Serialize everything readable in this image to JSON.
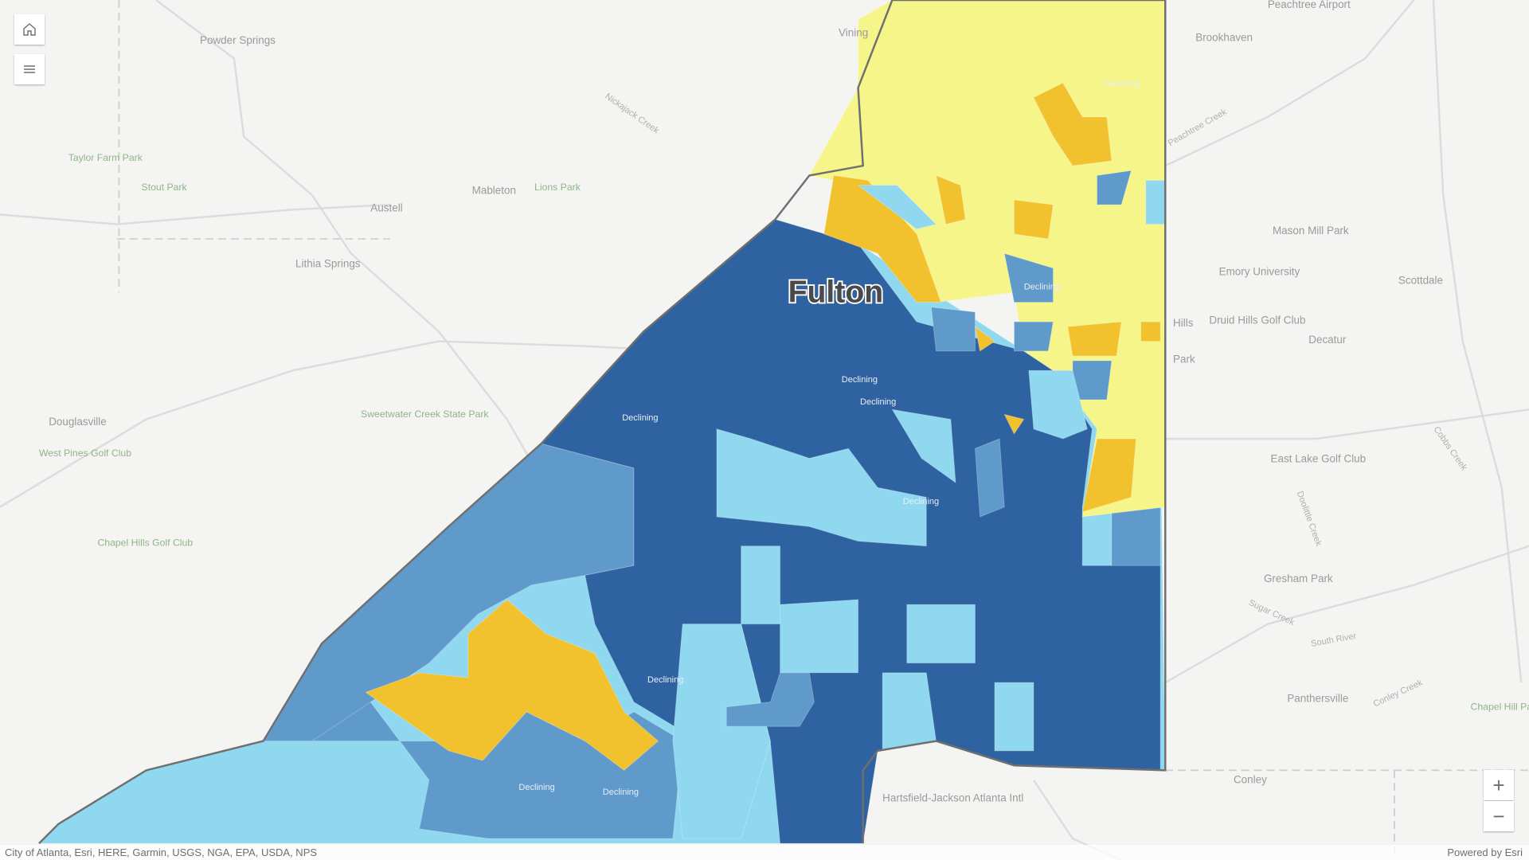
{
  "map": {
    "county_label": "Fulton",
    "trend_label": "Declining",
    "colors": {
      "yellow": "#f6f58a",
      "orange": "#f2c12e",
      "light_blue": "#8fd8ef",
      "medium_blue": "#5f9acb",
      "dark_blue": "#2f62a0",
      "basemap": "#f4f4f2"
    },
    "places": [
      "Powder Springs",
      "Austell",
      "Mableton",
      "Lithia Springs",
      "Douglasville",
      "Brookhaven",
      "Scottdale",
      "Decatur",
      "Druid Hills Golf Club",
      "East Lake Golf Club",
      "Gresham Park",
      "Panthersville",
      "Conley",
      "Emory University",
      "Mason Mill Park",
      "Hartsfield-Jackson Atlanta Intl",
      "Vining",
      "Peachtree Airport",
      "Hills",
      "Park"
    ],
    "parks": [
      "Taylor Farm Park",
      "Stout Park",
      "Lions Park",
      "Sweetwater Creek State Park",
      "West Pines Golf Club",
      "Chapel Hills Golf Club",
      "Chapel Hill Park"
    ],
    "water": [
      "Nickajack Creek",
      "Peachtree Creek",
      "Sugar Creek",
      "South River",
      "Cobbs Creek",
      "Doolittle Creek",
      "Conley Creek"
    ]
  },
  "controls": {
    "home": "home-icon",
    "layers": "list-icon",
    "zoom_in": "+",
    "zoom_out": "−"
  },
  "attribution": {
    "sources": "City of Atlanta, Esri, HERE, Garmin, USGS, NGA, EPA, USDA, NPS",
    "powered_by": "Powered by Esri"
  }
}
